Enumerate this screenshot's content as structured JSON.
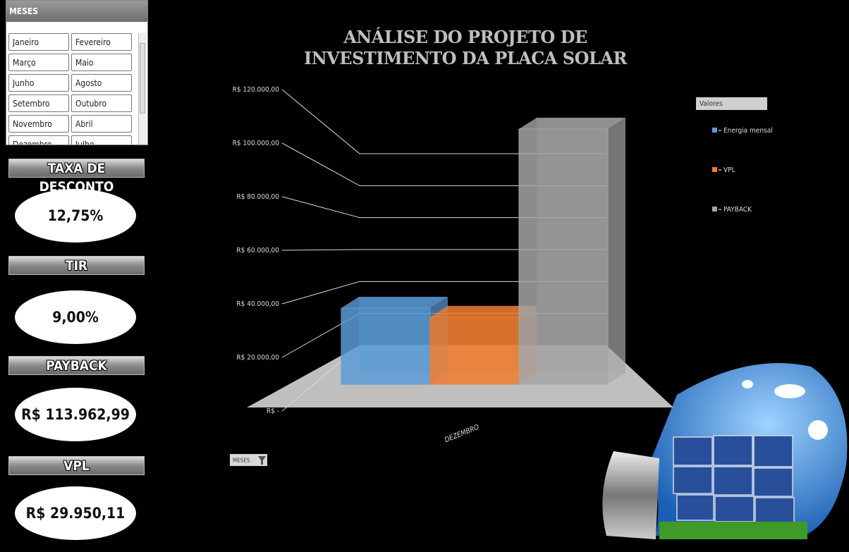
{
  "slicer": {
    "title": "MESES",
    "items": [
      "Janeiro",
      "Fevereiro",
      "Março",
      "Maio",
      "Junho",
      "Agosto",
      "Setembro",
      "Outubro",
      "Novembro",
      "Abril",
      "Dezembro",
      "Julho"
    ]
  },
  "kpis": [
    {
      "label": "TAXA DE DESCONTO",
      "value": "12,75%"
    },
    {
      "label": "TIR",
      "value": "9,00%"
    },
    {
      "label": "PAYBACK",
      "value": "R$ 113.962,99"
    },
    {
      "label": "VPL",
      "value": "R$ 29.950,11"
    }
  ],
  "chart_data": {
    "type": "bar",
    "title": "ANÁLISE DO PROJETO DE INVESTIMENTO DA PLACA SOLAR",
    "categories": [
      "DEZEMBRO"
    ],
    "series": [
      {
        "name": "Energia mensal",
        "color": "#5b9bd5",
        "values": [
          34000
        ]
      },
      {
        "name": "VPL",
        "color": "#ed7d31",
        "values": [
          29950.11
        ]
      },
      {
        "name": "PAYBACK",
        "color": "#a5a5a5",
        "values": [
          113962.99
        ]
      }
    ],
    "ylim": [
      0,
      120000
    ],
    "yticks": [
      {
        "value": 0,
        "label": "R$ -"
      },
      {
        "value": 20000,
        "label": "R$ 20.000,00"
      },
      {
        "value": 40000,
        "label": "R$ 40.000,00"
      },
      {
        "value": 60000,
        "label": "R$ 60.000,00"
      },
      {
        "value": 80000,
        "label": "R$ 80.000,00"
      },
      {
        "value": 100000,
        "label": "R$ 100.000,00"
      },
      {
        "value": 120000,
        "label": "R$ 120.000,00"
      }
    ],
    "grid": true,
    "legend": "right",
    "legend_title": "Valores",
    "field_button": "MESES"
  }
}
